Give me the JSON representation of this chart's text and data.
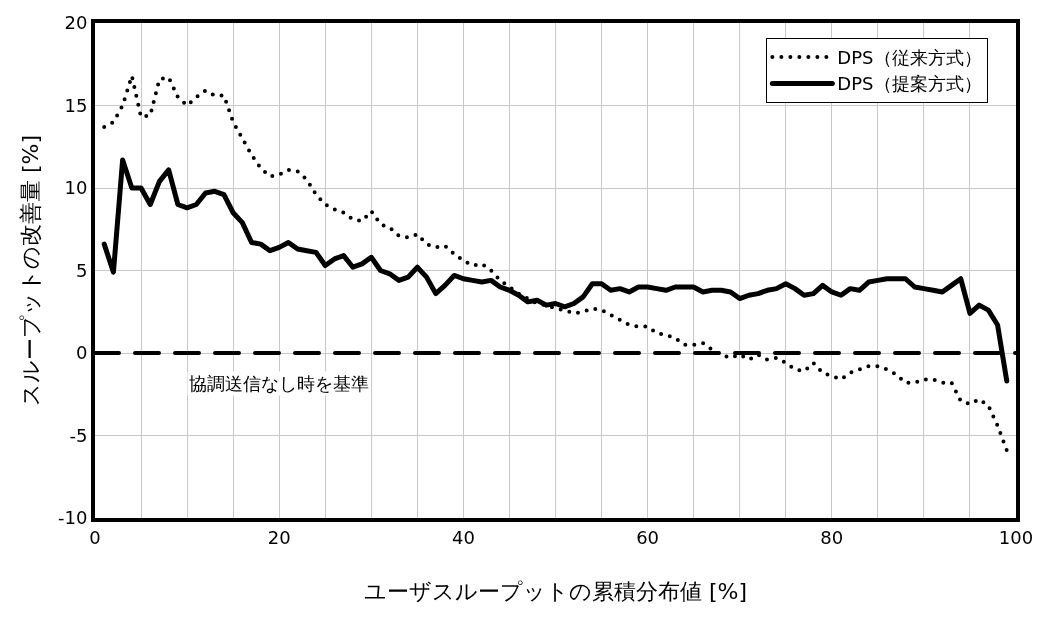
{
  "chart_data": {
    "type": "line",
    "xlabel": "ユーザスループットの累積分布値 [%]",
    "ylabel": "スループットの改善量 [%]",
    "x": [
      1,
      2,
      3,
      4,
      5,
      6,
      7,
      8,
      9,
      10,
      11,
      12,
      13,
      14,
      15,
      16,
      17,
      18,
      19,
      20,
      21,
      22,
      23,
      24,
      25,
      26,
      27,
      28,
      29,
      30,
      31,
      32,
      33,
      34,
      35,
      36,
      37,
      38,
      39,
      40,
      41,
      42,
      43,
      44,
      45,
      46,
      47,
      48,
      49,
      50,
      51,
      52,
      53,
      54,
      55,
      56,
      57,
      58,
      59,
      60,
      61,
      62,
      63,
      64,
      65,
      66,
      67,
      68,
      69,
      70,
      71,
      72,
      73,
      74,
      75,
      76,
      77,
      78,
      79,
      80,
      81,
      82,
      83,
      84,
      85,
      86,
      87,
      88,
      89,
      90,
      91,
      92,
      93,
      94,
      95,
      96,
      97,
      98,
      99
    ],
    "series": [
      {
        "name": "DPS（従来方式）",
        "color": "#000000",
        "line_style": "dotted",
        "values": [
          13.7,
          14.0,
          15.0,
          16.8,
          14.3,
          14.4,
          16.6,
          16.7,
          15.5,
          15.0,
          15.5,
          15.9,
          15.6,
          15.6,
          14.0,
          13.0,
          12.0,
          11.2,
          10.7,
          10.8,
          11.1,
          11.0,
          10.5,
          9.6,
          9.0,
          8.7,
          8.5,
          8.1,
          8.0,
          8.6,
          7.8,
          7.6,
          7.1,
          7.0,
          7.2,
          6.6,
          6.4,
          6.5,
          6.0,
          5.6,
          5.3,
          5.4,
          5.0,
          4.4,
          4.0,
          3.6,
          3.3,
          3.0,
          2.9,
          2.7,
          2.6,
          2.4,
          2.5,
          2.7,
          2.6,
          2.3,
          2.0,
          1.7,
          1.6,
          1.6,
          1.2,
          1.1,
          0.9,
          0.5,
          0.5,
          0.6,
          0.2,
          -0.1,
          -0.3,
          -0.1,
          -0.4,
          -0.1,
          -0.4,
          -0.3,
          -0.6,
          -1.0,
          -1.1,
          -0.6,
          -1.2,
          -1.4,
          -1.6,
          -1.2,
          -1.0,
          -0.8,
          -0.8,
          -1.0,
          -1.3,
          -1.8,
          -1.8,
          -1.6,
          -1.6,
          -1.8,
          -1.8,
          -2.9,
          -3.1,
          -2.8,
          -3.2,
          -4.4,
          -5.9
        ]
      },
      {
        "name": "DPS（提案方式）",
        "color": "#000000",
        "line_style": "solid",
        "values": [
          6.6,
          4.9,
          11.7,
          10.0,
          10.0,
          9.0,
          10.4,
          11.1,
          9.0,
          8.8,
          9.0,
          9.7,
          9.8,
          9.6,
          8.5,
          7.9,
          6.7,
          6.6,
          6.2,
          6.4,
          6.7,
          6.3,
          6.2,
          6.1,
          5.3,
          5.7,
          5.9,
          5.2,
          5.4,
          5.8,
          5.0,
          4.8,
          4.4,
          4.6,
          5.2,
          4.6,
          3.6,
          4.1,
          4.7,
          4.5,
          4.4,
          4.3,
          4.4,
          4.0,
          3.8,
          3.5,
          3.1,
          3.2,
          2.9,
          3.0,
          2.8,
          3.0,
          3.4,
          4.2,
          4.2,
          3.8,
          3.9,
          3.7,
          4.0,
          4.0,
          3.9,
          3.8,
          4.0,
          4.0,
          4.0,
          3.7,
          3.8,
          3.8,
          3.7,
          3.3,
          3.5,
          3.6,
          3.8,
          3.9,
          4.2,
          3.9,
          3.5,
          3.6,
          4.1,
          3.7,
          3.5,
          3.9,
          3.8,
          4.3,
          4.4,
          4.5,
          4.5,
          4.5,
          4.0,
          3.9,
          3.8,
          3.7,
          4.1,
          4.5,
          2.4,
          2.9,
          2.6,
          1.7,
          -1.7
        ]
      }
    ],
    "xlim": [
      0,
      100
    ],
    "xticks": [
      0,
      {
        "value": 5,
        "label": null
      },
      {
        "value": 10,
        "label": null
      },
      {
        "value": 15,
        "label": null
      },
      20,
      {
        "value": 25,
        "label": null
      },
      {
        "value": 30,
        "label": null
      },
      {
        "value": 35,
        "label": null
      },
      40,
      {
        "value": 45,
        "label": null
      },
      {
        "value": 50,
        "label": null
      },
      {
        "value": 55,
        "label": null
      },
      60,
      {
        "value": 65,
        "label": null
      },
      {
        "value": 70,
        "label": null
      },
      {
        "value": 75,
        "label": null
      },
      80,
      {
        "value": 85,
        "label": null
      },
      {
        "value": 90,
        "label": null
      },
      {
        "value": 95,
        "label": null
      },
      100
    ],
    "ylim": [
      -10,
      20
    ],
    "yticks": [
      -10,
      -5,
      0,
      5,
      10,
      15,
      20
    ],
    "ref_lines": [
      {
        "axis": "y",
        "value": 0,
        "label": "協調送信なし時を基準",
        "color": "#000000",
        "line_style": "dashed"
      }
    ],
    "grid": true,
    "legend": "top right",
    "marker": "none"
  }
}
